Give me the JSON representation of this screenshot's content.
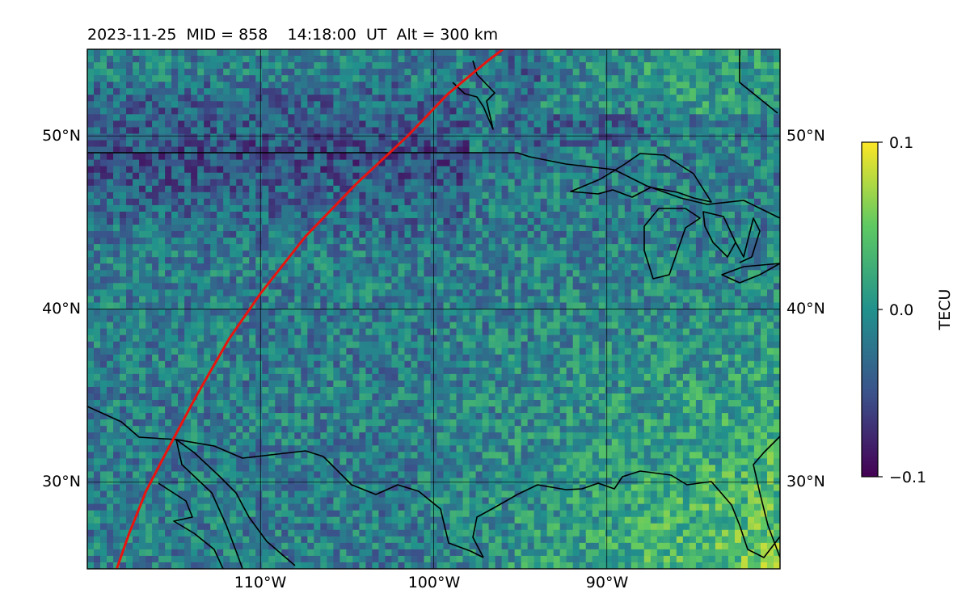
{
  "title": "2023-11-25  MID = 858    14:18:00  UT  Alt = 300 km",
  "map": {
    "lon_range": [
      -120,
      -80
    ],
    "lat_range": [
      25,
      55
    ],
    "lon_ticks": [
      -110,
      -100,
      -90
    ],
    "lat_ticks": [
      30,
      40,
      50
    ],
    "lon_tick_labels": [
      "110°W",
      "100°W",
      "90°W"
    ],
    "lat_tick_labels": [
      "30°N",
      "40°N",
      "50°N"
    ],
    "grid": true,
    "track_color": "#e8140f",
    "track": [
      [
        -118.3,
        25.0
      ],
      [
        -117.6,
        27.0
      ],
      [
        -116.6,
        29.5
      ],
      [
        -115.3,
        32.0
      ],
      [
        -113.7,
        35.0
      ],
      [
        -111.8,
        38.3
      ],
      [
        -110.0,
        40.9
      ],
      [
        -107.4,
        44.2
      ],
      [
        -104.5,
        47.2
      ],
      [
        -101.5,
        50.0
      ],
      [
        -99.2,
        52.4
      ],
      [
        -96.8,
        54.4
      ],
      [
        -96.0,
        55.0
      ]
    ]
  },
  "colorbar": {
    "label": "TECU",
    "min": -0.1,
    "max": 0.1,
    "ticks": [
      "0.1",
      "0.0",
      "−0.1"
    ],
    "colormap": "viridis",
    "colors": [
      "#440154",
      "#3b528b",
      "#21918c",
      "#5ec962",
      "#fde725"
    ]
  },
  "coastline_color": "#000000"
}
